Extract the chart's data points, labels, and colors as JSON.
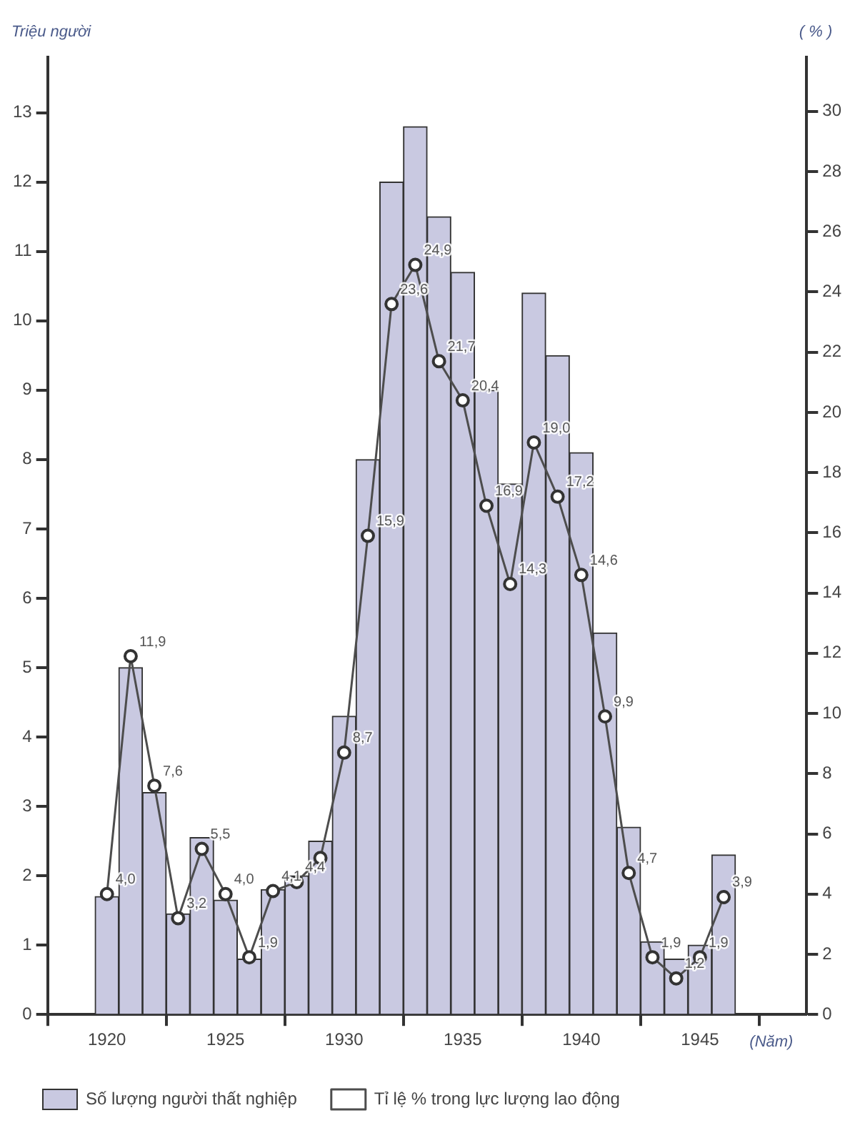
{
  "chart_data": {
    "type": "bar",
    "xlabel": "(Năm)",
    "ylabel": "Triệu người",
    "y2label": "( % )",
    "x": [
      1920,
      1921,
      1922,
      1923,
      1924,
      1925,
      1926,
      1927,
      1928,
      1929,
      1930,
      1931,
      1932,
      1933,
      1934,
      1935,
      1936,
      1937,
      1938,
      1939,
      1940,
      1941,
      1942,
      1943,
      1944,
      1945,
      1946
    ],
    "xlim": [
      1917.5,
      1949.5
    ],
    "xticks": [
      1920,
      1925,
      1930,
      1935,
      1940,
      1945
    ],
    "ylim": [
      0,
      13.8
    ],
    "yticks": [
      0,
      1,
      2,
      3,
      4,
      5,
      6,
      7,
      8,
      9,
      10,
      11,
      12,
      13
    ],
    "y2lim": [
      0,
      31.8
    ],
    "y2ticks": [
      0,
      2,
      4,
      6,
      8,
      10,
      12,
      14,
      16,
      18,
      20,
      22,
      24,
      26,
      28,
      30
    ],
    "grid": false,
    "legend": "bottom",
    "series": [
      {
        "name": "Số lượng người thất nghiệp",
        "color": "#c9c9e1",
        "values": [
          1.7,
          5.0,
          3.2,
          1.45,
          2.55,
          1.65,
          0.8,
          1.8,
          2.0,
          2.5,
          4.3,
          8.0,
          12.0,
          12.8,
          11.5,
          10.7,
          9.0,
          7.65,
          10.4,
          9.5,
          8.1,
          5.5,
          2.7,
          1.05,
          0.8,
          1.0,
          2.3
        ]
      },
      {
        "name": "Tỉ lệ % trong lực lượng lao động",
        "type": "line",
        "axis": "y2",
        "color": "#4d4d4d",
        "marker": "circle",
        "values": [
          4.0,
          11.9,
          7.6,
          3.2,
          5.5,
          4.0,
          1.9,
          4.1,
          4.4,
          5.2,
          8.7,
          15.9,
          23.6,
          24.9,
          21.7,
          20.4,
          16.9,
          14.3,
          19.0,
          17.2,
          14.6,
          9.9,
          4.7,
          1.9,
          1.2,
          1.9,
          3.9
        ],
        "value_labels": [
          "4,0",
          "11,9",
          "7,6",
          "3,2",
          "5,5",
          "4,0",
          "1,9",
          "4,1",
          "4,4",
          null,
          "8,7",
          "15,9",
          "23,6",
          "24,9",
          "21,7",
          "20,4",
          "16,9",
          "14,3",
          "19,0",
          "17,2",
          "14,6",
          "9,9",
          "4,7",
          "1,9",
          "1,2",
          "1,9",
          "3,9"
        ]
      }
    ]
  }
}
